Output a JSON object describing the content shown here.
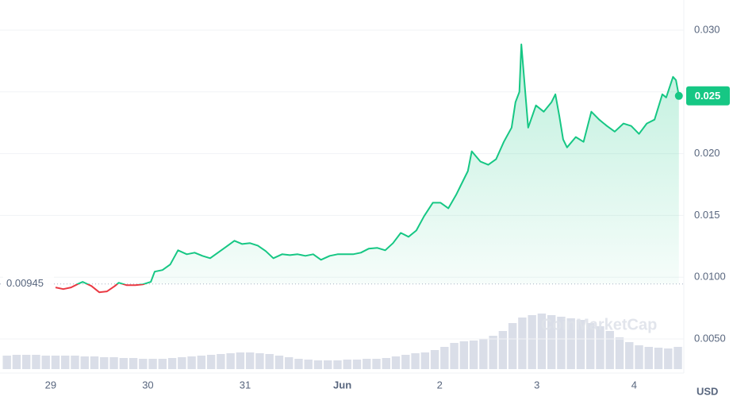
{
  "chart_data": {
    "type": "line",
    "x": [
      0.05,
      0.13,
      0.21,
      0.29,
      0.33,
      0.42,
      0.5,
      0.58,
      0.66,
      0.7,
      0.78,
      0.87,
      0.95,
      1.03,
      1.07,
      1.15,
      1.23,
      1.31,
      1.4,
      1.48,
      1.56,
      1.64,
      1.72,
      1.8,
      1.89,
      1.97,
      2.05,
      2.13,
      2.21,
      2.29,
      2.38,
      2.46,
      2.54,
      2.62,
      2.7,
      2.78,
      2.87,
      2.95,
      3.03,
      3.11,
      3.19,
      3.27,
      3.36,
      3.44,
      3.52,
      3.6,
      3.68,
      3.76,
      3.84,
      3.93,
      4.01,
      4.09,
      4.17,
      4.21,
      4.29,
      4.33,
      4.42,
      4.5,
      4.58,
      4.66,
      4.74,
      4.78,
      4.82,
      4.84,
      4.87,
      4.91,
      4.99,
      5.07,
      5.15,
      5.19,
      5.23,
      5.27,
      5.31,
      5.4,
      5.48,
      5.56,
      5.64,
      5.72,
      5.8,
      5.89,
      5.97,
      6.05,
      6.13,
      6.21,
      6.29,
      6.33,
      6.4,
      6.43,
      6.46
    ],
    "values": [
      0.00917,
      0.00904,
      0.00917,
      0.00949,
      0.00962,
      0.00929,
      0.00878,
      0.00885,
      0.00929,
      0.00955,
      0.00936,
      0.00936,
      0.00942,
      0.00962,
      0.01045,
      0.01058,
      0.01103,
      0.01218,
      0.01186,
      0.01199,
      0.01173,
      0.01154,
      0.01199,
      0.01244,
      0.01295,
      0.01269,
      0.01276,
      0.01256,
      0.01212,
      0.01154,
      0.01186,
      0.01179,
      0.01186,
      0.01173,
      0.01186,
      0.01141,
      0.01173,
      0.01186,
      0.01186,
      0.01186,
      0.01199,
      0.01231,
      0.01237,
      0.01218,
      0.01276,
      0.01359,
      0.01327,
      0.01378,
      0.01494,
      0.01603,
      0.01603,
      0.01558,
      0.01667,
      0.01731,
      0.01859,
      0.02019,
      0.01936,
      0.0191,
      0.01955,
      0.02096,
      0.02211,
      0.02417,
      0.025,
      0.02885,
      0.02596,
      0.02211,
      0.02391,
      0.0234,
      0.02417,
      0.02481,
      0.02308,
      0.02115,
      0.02051,
      0.02135,
      0.02096,
      0.0234,
      0.02276,
      0.02224,
      0.02179,
      0.02244,
      0.02224,
      0.0216,
      0.02244,
      0.02276,
      0.02481,
      0.02455,
      0.02622,
      0.02596,
      0.02468
    ],
    "up_color": "#16c784",
    "down_color": "#ea3943",
    "baseline": 0.00945,
    "current_label": "0.025",
    "xlim": [
      -0.48,
      6.47
    ],
    "xticks": [
      {
        "value": 0,
        "label": "29"
      },
      {
        "value": 1,
        "label": "30"
      },
      {
        "value": 2,
        "label": "31"
      },
      {
        "value": 3,
        "label": "Jun"
      },
      {
        "value": 4,
        "label": "2"
      },
      {
        "value": 5,
        "label": "3"
      },
      {
        "value": 6,
        "label": "4"
      }
    ],
    "ylim": [
      0.00256,
      0.03212
    ],
    "yticks": [
      {
        "value": 0.005,
        "label": "0.0050"
      },
      {
        "value": 0.01,
        "label": "0.0100"
      },
      {
        "value": 0.015,
        "label": "0.015"
      },
      {
        "value": 0.02,
        "label": "0.020"
      },
      {
        "value": 0.025,
        "label": "0.025"
      },
      {
        "value": 0.03,
        "label": "0.030"
      }
    ],
    "grid": true,
    "y_unit": "USD",
    "watermark": "CoinMarketCap",
    "volume": {
      "color": "#cdd3e0",
      "ylim": [
        0,
        100
      ],
      "x": [
        -0.45,
        -0.35,
        -0.25,
        -0.15,
        -0.05,
        0.05,
        0.15,
        0.25,
        0.35,
        0.45,
        0.55,
        0.65,
        0.75,
        0.85,
        0.95,
        1.05,
        1.15,
        1.25,
        1.35,
        1.45,
        1.55,
        1.65,
        1.75,
        1.85,
        1.95,
        2.05,
        2.15,
        2.25,
        2.35,
        2.45,
        2.55,
        2.65,
        2.75,
        2.85,
        2.95,
        3.05,
        3.15,
        3.25,
        3.35,
        3.45,
        3.55,
        3.65,
        3.75,
        3.85,
        3.95,
        4.05,
        4.15,
        4.25,
        4.35,
        4.45,
        4.55,
        4.65,
        4.75,
        4.85,
        4.95,
        5.05,
        5.15,
        5.25,
        5.35,
        5.45,
        5.55,
        5.65,
        5.75,
        5.85,
        5.95,
        6.05,
        6.15,
        6.25,
        6.35,
        6.45
      ],
      "values": [
        17,
        18,
        18,
        18,
        17,
        17,
        17,
        17,
        16,
        16,
        15,
        15,
        14,
        14,
        13,
        13,
        13,
        14,
        15,
        16,
        17,
        18,
        19,
        20,
        21,
        21,
        20,
        19,
        17,
        15,
        13,
        12,
        11,
        11,
        11,
        12,
        12,
        13,
        13,
        14,
        16,
        18,
        20,
        21,
        24,
        28,
        33,
        35,
        36,
        38,
        42,
        48,
        58,
        65,
        68,
        70,
        68,
        66,
        64,
        62,
        58,
        54,
        48,
        40,
        34,
        30,
        28,
        27,
        26,
        28
      ]
    }
  }
}
